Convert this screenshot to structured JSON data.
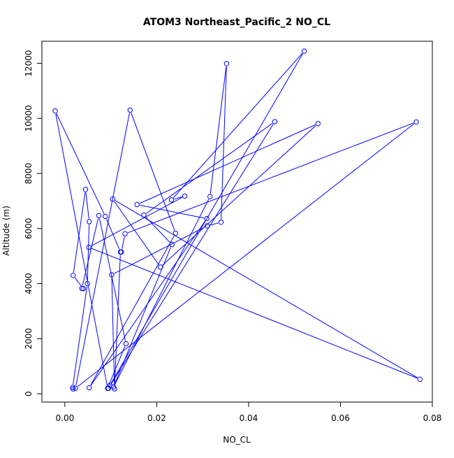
{
  "chart_data": {
    "type": "line",
    "title": "ATOM3 Northeast_Pacific_2 NO_CL",
    "xlabel": "NO_CL",
    "ylabel": "Altitude (m)",
    "xlim": [
      -0.005,
      0.08
    ],
    "ylim": [
      -300,
      12800
    ],
    "x_ticks": [
      0.0,
      0.02,
      0.04,
      0.06,
      0.08
    ],
    "x_tick_labels": [
      "0.00",
      "0.02",
      "0.04",
      "0.06",
      "0.08"
    ],
    "y_ticks": [
      0,
      2000,
      4000,
      6000,
      8000,
      10000,
      12000
    ],
    "y_tick_labels": [
      "0",
      "2000",
      "4000",
      "6000",
      "8000",
      "10000",
      "12000"
    ],
    "grid": false,
    "line_color": "#0000ff",
    "series": [
      {
        "x": [
          0.0018,
          0.0017,
          0.0049,
          0.0053,
          0.0045,
          0.0018,
          0.004,
          0.0037,
          0.0074,
          0.0133,
          0.0093,
          -0.0021,
          0.0088,
          0.0121,
          0.0108,
          0.0102,
          0.031,
          0.034,
          0.0352,
          0.0316,
          0.0106,
          0.0233,
          0.0172,
          0.0457,
          0.0095,
          0.0098,
          0.0521,
          0.0232,
          0.0261,
          0.0052,
          0.0773,
          0.0104,
          0.0208,
          0.0551,
          0.0157,
          0.0309,
          0.0053,
          0.0241,
          0.0142,
          0.0023,
          0.0765,
          0.0131,
          0.0123
        ],
        "y": [
          175,
          230,
          4000,
          6250,
          7420,
          4300,
          3820,
          3830,
          6470,
          1820,
          200,
          10270,
          6440,
          5150,
          180,
          4320,
          6100,
          6230,
          11990,
          7160,
          250,
          5420,
          6490,
          9880,
          200,
          310,
          12440,
          7040,
          7180,
          5320,
          530,
          7070,
          4600,
          9810,
          6870,
          6360,
          220,
          5830,
          10300,
          200,
          9870,
          5810,
          5150
        ]
      }
    ]
  }
}
